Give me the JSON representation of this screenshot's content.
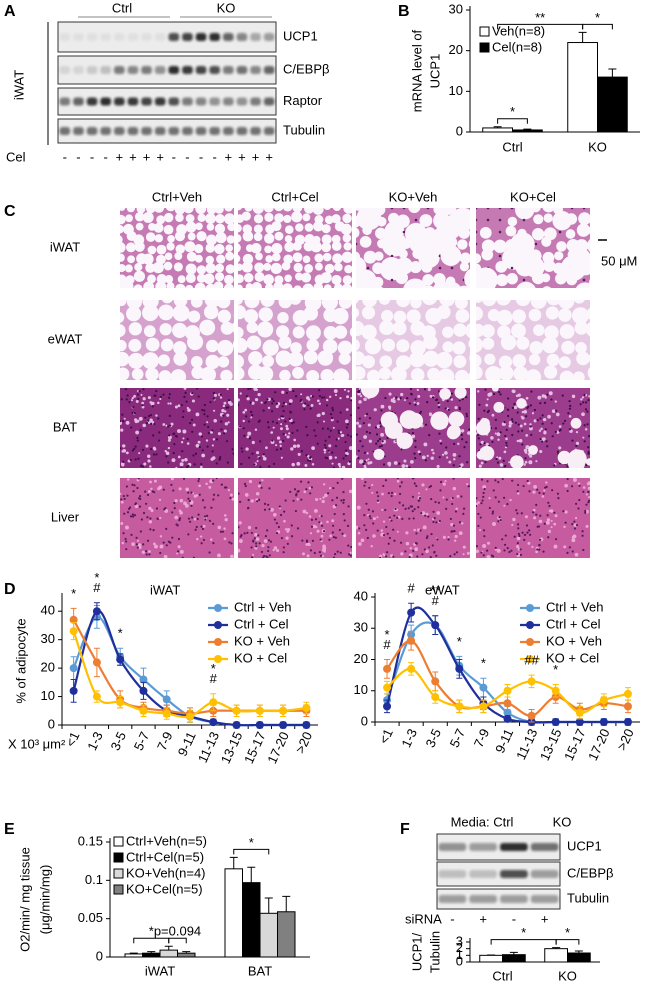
{
  "panel_letters": [
    "A",
    "B",
    "C",
    "D",
    "E",
    "F"
  ],
  "blot_a": {
    "groups": [
      "Ctrl",
      "KO"
    ],
    "tissue": "iWAT",
    "bands": [
      "UCP1",
      "C/EBPβ",
      "Raptor",
      "Tubulin"
    ],
    "treatment": "Cel",
    "lanes": [
      "-",
      "-",
      "-",
      "-",
      "+",
      "+",
      "+",
      "+",
      "-",
      "-",
      "-",
      "-",
      "+",
      "+",
      "+",
      "+"
    ]
  },
  "histology": {
    "columns": [
      "Ctrl+Veh",
      "Ctrl+Cel",
      "KO+Veh",
      "KO+Cel"
    ],
    "rows": [
      "iWAT",
      "eWAT",
      "BAT",
      "Liver"
    ],
    "scale": "50 μM"
  },
  "blot_f": {
    "groups": [
      "Media: Ctrl",
      "KO"
    ],
    "bands": [
      "UCP1",
      "C/EBPβ",
      "Tubulin"
    ],
    "treatment": "siRNA",
    "lanes": [
      "-",
      "+",
      "-",
      "+"
    ]
  },
  "chart_data": [
    {
      "type": "bar",
      "y_label": [
        "mRNA level  of",
        "UCP1"
      ],
      "categories": [
        "Ctrl",
        "KO"
      ],
      "series": [
        {
          "name": "Veh(n=8)",
          "color": "#ffffff",
          "values": [
            1.0,
            22
          ],
          "errors": [
            0.3,
            2.5
          ]
        },
        {
          "name": "Cel(n=8)",
          "color": "#000000",
          "values": [
            0.5,
            13.5
          ],
          "errors": [
            0.2,
            2
          ]
        }
      ],
      "ylim": [
        0,
        30
      ],
      "yticks": [
        0,
        10,
        20,
        30
      ],
      "legend": "upper left",
      "annotations": [
        {
          "text": "*",
          "from": [
            0,
            0
          ],
          "to": [
            0,
            1
          ]
        },
        {
          "text": "**",
          "from": [
            0,
            0
          ],
          "to": [
            1,
            0
          ]
        },
        {
          "text": "*",
          "from": [
            1,
            0
          ],
          "to": [
            1,
            1
          ]
        }
      ]
    },
    {
      "type": "line",
      "title": "iWAT",
      "y_label": "% of adipocyte",
      "x_label": "X 10³ μm²",
      "categories": [
        "<1",
        "1-3",
        "3-5",
        "5-7",
        "7-9",
        "9-11",
        "11-13",
        "13-15",
        "15-17",
        "17-20",
        ">20"
      ],
      "series": [
        {
          "name": "Ctrl + Veh",
          "color": "#5b9bd5",
          "values": [
            20,
            38,
            24,
            16,
            9,
            3,
            1,
            0,
            0,
            0,
            0
          ],
          "errors": [
            4,
            4,
            3,
            4,
            3,
            2,
            1,
            1,
            1,
            1,
            1
          ]
        },
        {
          "name": "Ctrl + Cel",
          "color": "#1f2f9c",
          "values": [
            12,
            40,
            23,
            12,
            5,
            3,
            1,
            0,
            0,
            0,
            0
          ],
          "errors": [
            4,
            3,
            2,
            3,
            2,
            2,
            1,
            1,
            1,
            1,
            1
          ]
        },
        {
          "name": "KO + Veh",
          "color": "#ed7d31",
          "values": [
            37,
            22,
            9,
            6,
            5,
            4,
            5,
            5,
            5,
            5,
            5
          ],
          "errors": [
            4,
            5,
            3,
            2,
            2,
            2,
            2,
            2,
            2,
            2,
            2
          ]
        },
        {
          "name": "KO + Cel",
          "color": "#ffc000",
          "values": [
            33,
            10,
            8,
            5,
            4,
            3,
            8,
            5,
            5,
            5,
            6
          ],
          "errors": [
            3,
            2,
            2,
            2,
            2,
            2,
            3,
            2,
            2,
            2,
            2
          ]
        }
      ],
      "ylim": [
        0,
        45
      ],
      "yticks": [
        0,
        10,
        20,
        30,
        40
      ],
      "legend": "upper right",
      "annotations": [
        {
          "text": "*",
          "category": 0
        },
        {
          "text": "#",
          "category": 1
        },
        {
          "text": "*",
          "category": 1
        },
        {
          "text": "*",
          "category": 2
        },
        {
          "text": "#",
          "category": 6
        },
        {
          "text": "*",
          "category": 6
        }
      ]
    },
    {
      "type": "line",
      "title": "eWAT",
      "categories": [
        "<1",
        "1-3",
        "3-5",
        "5-7",
        "7-9",
        "9-11",
        "11-13",
        "13-15",
        "15-17",
        "17-20",
        ">20"
      ],
      "series": [
        {
          "name": "Ctrl + Veh",
          "color": "#5b9bd5",
          "values": [
            7,
            28,
            31,
            18,
            11,
            3,
            0,
            0,
            0,
            0,
            0
          ],
          "errors": [
            2,
            3,
            3,
            3,
            3,
            2,
            1,
            1,
            1,
            1,
            1
          ]
        },
        {
          "name": "Ctrl + Cel",
          "color": "#1f2f9c",
          "values": [
            5,
            35,
            31,
            17,
            6,
            1,
            0,
            0,
            0,
            0,
            0
          ],
          "errors": [
            2,
            3,
            3,
            3,
            2,
            1,
            1,
            1,
            1,
            1,
            1
          ]
        },
        {
          "name": "KO + Veh",
          "color": "#ed7d31",
          "values": [
            17,
            26,
            13,
            5,
            5,
            6,
            2,
            8,
            4,
            6,
            5
          ],
          "errors": [
            3,
            3,
            3,
            2,
            2,
            2,
            2,
            2,
            2,
            2,
            2
          ]
        },
        {
          "name": "KO + Cel",
          "color": "#ffc000",
          "values": [
            11,
            17,
            8,
            5,
            5,
            10,
            13,
            10,
            3,
            7,
            9
          ],
          "errors": [
            2,
            2,
            2,
            2,
            2,
            2,
            2,
            2,
            2,
            2,
            2
          ]
        }
      ],
      "ylim": [
        0,
        40
      ],
      "yticks": [
        0,
        10,
        20,
        30,
        40
      ],
      "legend": "upper right",
      "annotations": [
        {
          "text": "#",
          "category": 0
        },
        {
          "text": "*",
          "category": 0
        },
        {
          "text": "#",
          "category": 1
        },
        {
          "text": "#",
          "category": 2
        },
        {
          "text": "**",
          "category": 2
        },
        {
          "text": "*",
          "category": 3
        },
        {
          "text": "*",
          "category": 4
        },
        {
          "text": "##",
          "category": 6
        },
        {
          "text": "*",
          "category": 7
        }
      ]
    },
    {
      "type": "bar",
      "y_label": [
        "O2/min/ mg tissue",
        "(μg/min/mg)"
      ],
      "categories": [
        "iWAT",
        "BAT"
      ],
      "series": [
        {
          "name": "Ctrl+Veh(n=5)",
          "color": "#ffffff",
          "values": [
            0.004,
            0.115
          ],
          "errors": [
            0.001,
            0.015
          ]
        },
        {
          "name": "Ctrl+Cel(n=5)",
          "color": "#000000",
          "values": [
            0.005,
            0.097
          ],
          "errors": [
            0.002,
            0.02
          ]
        },
        {
          "name": "KO+Veh(n=4)",
          "color": "#d9d9d9",
          "values": [
            0.009,
            0.057
          ],
          "errors": [
            0.005,
            0.02
          ]
        },
        {
          "name": "KO+Cel(n=5)",
          "color": "#808080",
          "values": [
            0.005,
            0.059
          ],
          "errors": [
            0.002,
            0.02
          ]
        }
      ],
      "ylim": [
        0,
        0.15
      ],
      "yticks": [
        0,
        0.05,
        0.1,
        0.15
      ],
      "legend": "upper left",
      "annotations": [
        {
          "text": "*",
          "from": [
            0,
            0
          ],
          "to": [
            0,
            2
          ]
        },
        {
          "text": "p=0.094",
          "from": [
            0,
            2
          ],
          "to": [
            0,
            3
          ]
        },
        {
          "text": "*",
          "from": [
            1,
            0
          ],
          "to": [
            1,
            2
          ]
        }
      ]
    },
    {
      "type": "bar",
      "y_label": [
        "UCP1/",
        "Tubulin"
      ],
      "categories": [
        "Ctrl",
        "KO"
      ],
      "series": [
        {
          "color": "#ffffff",
          "values": [
            1.0,
            2.0
          ],
          "errors": [
            0.05,
            0.15
          ]
        },
        {
          "color": "#000000",
          "values": [
            1.1,
            1.35
          ],
          "errors": [
            0.35,
            0.3
          ]
        }
      ],
      "ylim": [
        0,
        3
      ],
      "yticks": [
        0,
        1,
        2,
        3
      ],
      "annotations": [
        {
          "text": "*",
          "from": [
            0,
            0
          ],
          "to": [
            1,
            0
          ]
        },
        {
          "text": "*",
          "from": [
            1,
            0
          ],
          "to": [
            1,
            1
          ]
        }
      ]
    }
  ]
}
